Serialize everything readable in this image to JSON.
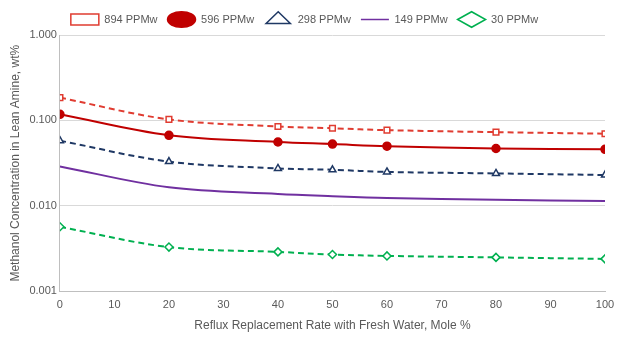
{
  "chart_data": {
    "type": "line",
    "x_label": "Reflux Replacement Rate with Fresh Water, Mole %",
    "y_label": "Methanol Concentration in Lean Amine, wt%",
    "x": [
      0,
      20,
      40,
      50,
      60,
      80,
      100
    ],
    "xlim": [
      0,
      100
    ],
    "xticks": [
      0,
      10,
      20,
      30,
      40,
      50,
      60,
      70,
      80,
      90,
      100
    ],
    "ylim": [
      0.001,
      1
    ],
    "yticks": [
      0.001,
      {
        "value": 0.01,
        "label": "0.010"
      },
      {
        "value": 0.1,
        "label": "0.100"
      },
      {
        "value": 1,
        "label": "1.000"
      }
    ],
    "log": "y",
    "grid": true,
    "legend": "top",
    "series": [
      {
        "name": "894 PPMw",
        "color": "#e03c31",
        "marker": "open-square",
        "line_style": "dashed",
        "values": [
          0.185,
          0.103,
          0.085,
          0.081,
          0.077,
          0.073,
          0.07
        ]
      },
      {
        "name": "596 PPMw",
        "color": "#c00000",
        "marker": "circle",
        "line_style": "solid",
        "values": [
          0.118,
          0.067,
          0.056,
          0.053,
          0.05,
          0.047,
          0.046
        ]
      },
      {
        "name": "298 PPMw",
        "color": "#1f3864",
        "marker": "open-triangle",
        "line_style": "dashed",
        "values": [
          0.058,
          0.033,
          0.0275,
          0.0265,
          0.025,
          0.024,
          0.023
        ]
      },
      {
        "name": "149 PPMw",
        "color": "#7030a0",
        "marker": "none",
        "line_style": "solid",
        "values": [
          0.029,
          0.0165,
          0.0138,
          0.013,
          0.0124,
          0.0118,
          0.0114
        ]
      },
      {
        "name": "30 PPMw",
        "color": "#00b050",
        "marker": "open-diamond",
        "line_style": "dashed",
        "values": [
          0.0057,
          0.0033,
          0.0029,
          0.0027,
          0.0026,
          0.0025,
          0.0024
        ]
      }
    ]
  }
}
